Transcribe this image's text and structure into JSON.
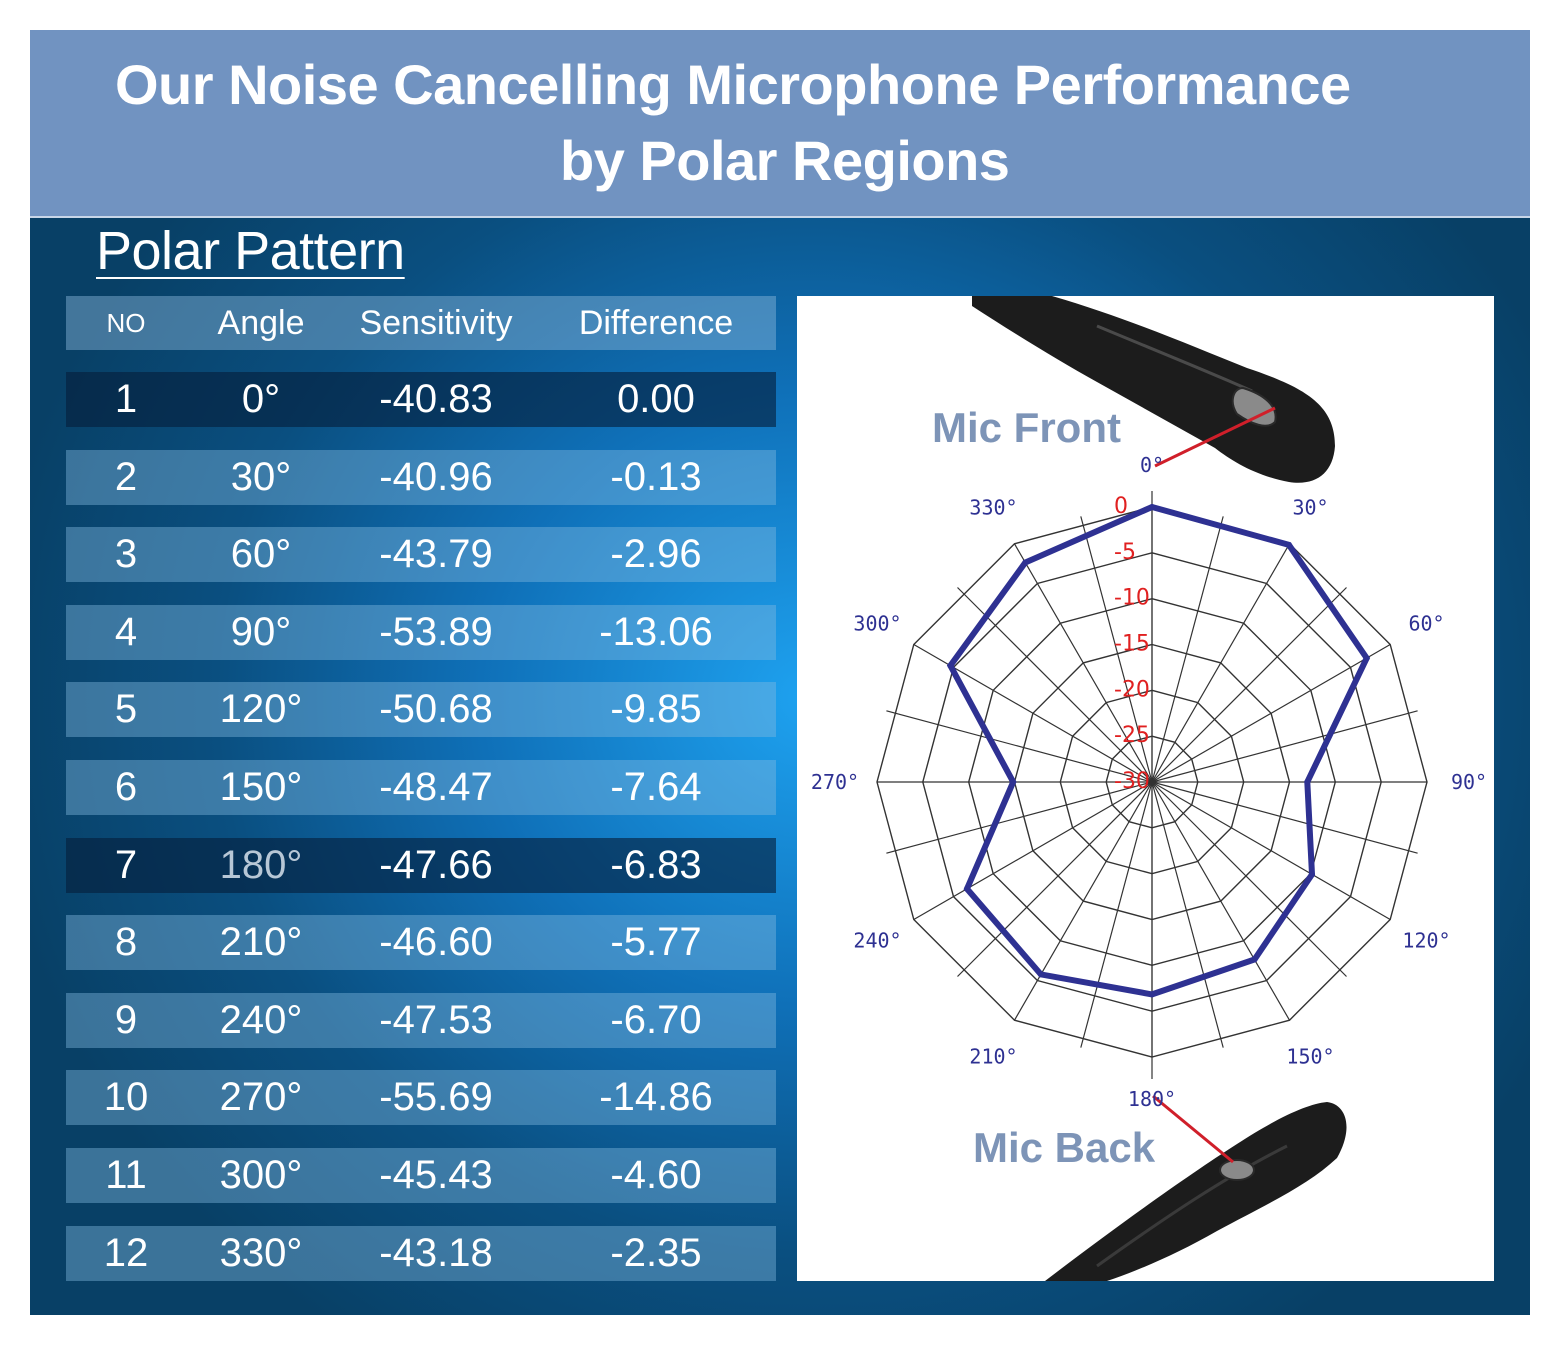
{
  "header": {
    "title_line1": "Our Noise Cancelling Microphone Performance",
    "title_line2": "by Polar Regions"
  },
  "section_title": "Polar Pattern",
  "table": {
    "columns": [
      "NO",
      "Angle",
      "Sensitivity",
      "Difference"
    ],
    "rows": [
      {
        "no": "1",
        "angle": "0°",
        "sensitivity": "-40.83",
        "difference": "0.00"
      },
      {
        "no": "2",
        "angle": "30°",
        "sensitivity": "-40.96",
        "difference": "-0.13"
      },
      {
        "no": "3",
        "angle": "60°",
        "sensitivity": "-43.79",
        "difference": "-2.96"
      },
      {
        "no": "4",
        "angle": "90°",
        "sensitivity": "-53.89",
        "difference": "-13.06"
      },
      {
        "no": "5",
        "angle": "120°",
        "sensitivity": "-50.68",
        "difference": "-9.85"
      },
      {
        "no": "6",
        "angle": "150°",
        "sensitivity": "-48.47",
        "difference": "-7.64"
      },
      {
        "no": "7",
        "angle": "180°",
        "sensitivity": "-47.66",
        "difference": "-6.83"
      },
      {
        "no": "8",
        "angle": "210°",
        "sensitivity": "-46.60",
        "difference": "-5.77"
      },
      {
        "no": "9",
        "angle": "240°",
        "sensitivity": "-47.53",
        "difference": "-6.70"
      },
      {
        "no": "10",
        "angle": "270°",
        "sensitivity": "-55.69",
        "difference": "-14.86"
      },
      {
        "no": "11",
        "angle": "300°",
        "sensitivity": "-45.43",
        "difference": "-4.60"
      },
      {
        "no": "12",
        "angle": "330°",
        "sensitivity": "-43.18",
        "difference": "-2.35"
      }
    ],
    "highlighted_rows": [
      1,
      7
    ]
  },
  "mic_front_label": "Mic Front",
  "mic_back_label": "Mic Back",
  "colors": {
    "banner": "#7193c1",
    "background": "#0a4f80",
    "series_line": "#2e3192",
    "radial_labels": "#e02020",
    "angle_labels": "#2e3192",
    "pointer": "#d01f2a"
  },
  "chart_data": {
    "type": "polar",
    "angles": [
      0,
      30,
      60,
      90,
      120,
      150,
      180,
      210,
      240,
      270,
      300,
      330
    ],
    "angle_labels": [
      "0°",
      "30°",
      "60°",
      "90°",
      "120°",
      "150°",
      "180°",
      "210°",
      "240°",
      "270°",
      "300°",
      "330°"
    ],
    "radial_ticks": [
      0,
      -5,
      -10,
      -15,
      -20,
      -25,
      -30
    ],
    "radial_tick_labels": [
      "0",
      "-5",
      "-10",
      "-15",
      "-20",
      "-25",
      "-30"
    ],
    "rlim": [
      -30,
      0
    ],
    "series": [
      {
        "values": [
          0.0,
          -0.13,
          -2.96,
          -13.06,
          -9.85,
          -7.64,
          -6.83,
          -5.77,
          -6.7,
          -14.86,
          -4.6,
          -2.35
        ]
      }
    ]
  }
}
